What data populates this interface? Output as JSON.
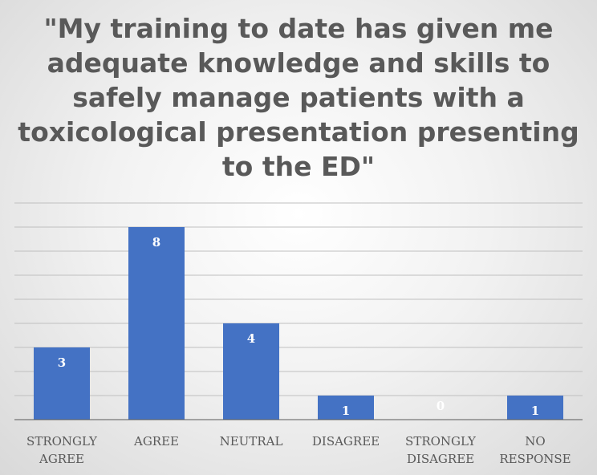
{
  "chart_data": {
    "type": "bar",
    "title": "\"My training to date has given me adequate knowledge and skills to safely manage patients with a toxicological presentation presenting to the ED\"",
    "categories": [
      "STRONGLY AGREE",
      "AGREE",
      "NEUTRAL",
      "DISAGREE",
      "STRONGLY DISAGREE",
      "NO RESPONSE"
    ],
    "values": [
      3,
      8,
      4,
      1,
      0,
      1
    ],
    "xlabel": "",
    "ylabel": "",
    "ylim": [
      0,
      9
    ],
    "grid": true,
    "legend": "none",
    "colors": {
      "bar": "#4472c4",
      "data_label": "#ffffff",
      "text": "#595959",
      "grid": "#bfbfbf"
    }
  }
}
